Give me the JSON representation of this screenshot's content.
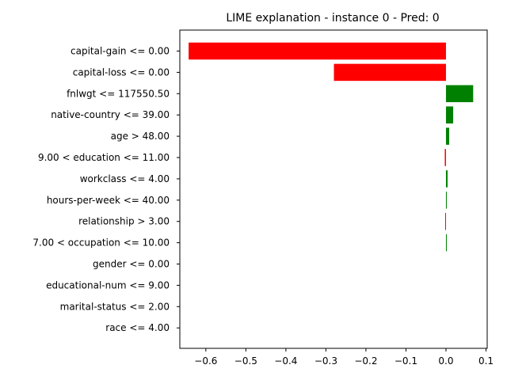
{
  "chart_data": {
    "type": "bar",
    "orientation": "horizontal",
    "title": "LIME explanation - instance 0 - Pred: 0",
    "xlabel": "",
    "ylabel": "",
    "xlim": [
      -0.665,
      0.103
    ],
    "x_ticks": [
      -0.6,
      -0.5,
      -0.4,
      -0.3,
      -0.2,
      -0.1,
      0.0,
      0.1
    ],
    "x_tick_labels": [
      "−0.6",
      "−0.5",
      "−0.4",
      "−0.3",
      "−0.2",
      "−0.1",
      "0.0",
      "0.1"
    ],
    "grid": false,
    "colors": {
      "positive": "#008000",
      "negative": "#ff0000"
    },
    "categories": [
      "capital-gain <= 0.00",
      "capital-loss <= 0.00",
      "fnlwgt <= 117550.50",
      "native-country <= 39.00",
      "age > 48.00",
      "9.00 < education <= 11.00",
      "workclass <= 4.00",
      "hours-per-week <= 40.00",
      "relationship > 3.00",
      "7.00 < occupation <= 10.00",
      "gender <= 0.00",
      "educational-num <= 9.00",
      "marital-status <= 2.00",
      "race <= 4.00"
    ],
    "values": [
      -0.643,
      -0.28,
      0.068,
      0.018,
      0.008,
      -0.003,
      0.004,
      0.002,
      -0.002,
      0.002,
      0.0,
      0.0,
      0.0,
      0.0
    ]
  }
}
